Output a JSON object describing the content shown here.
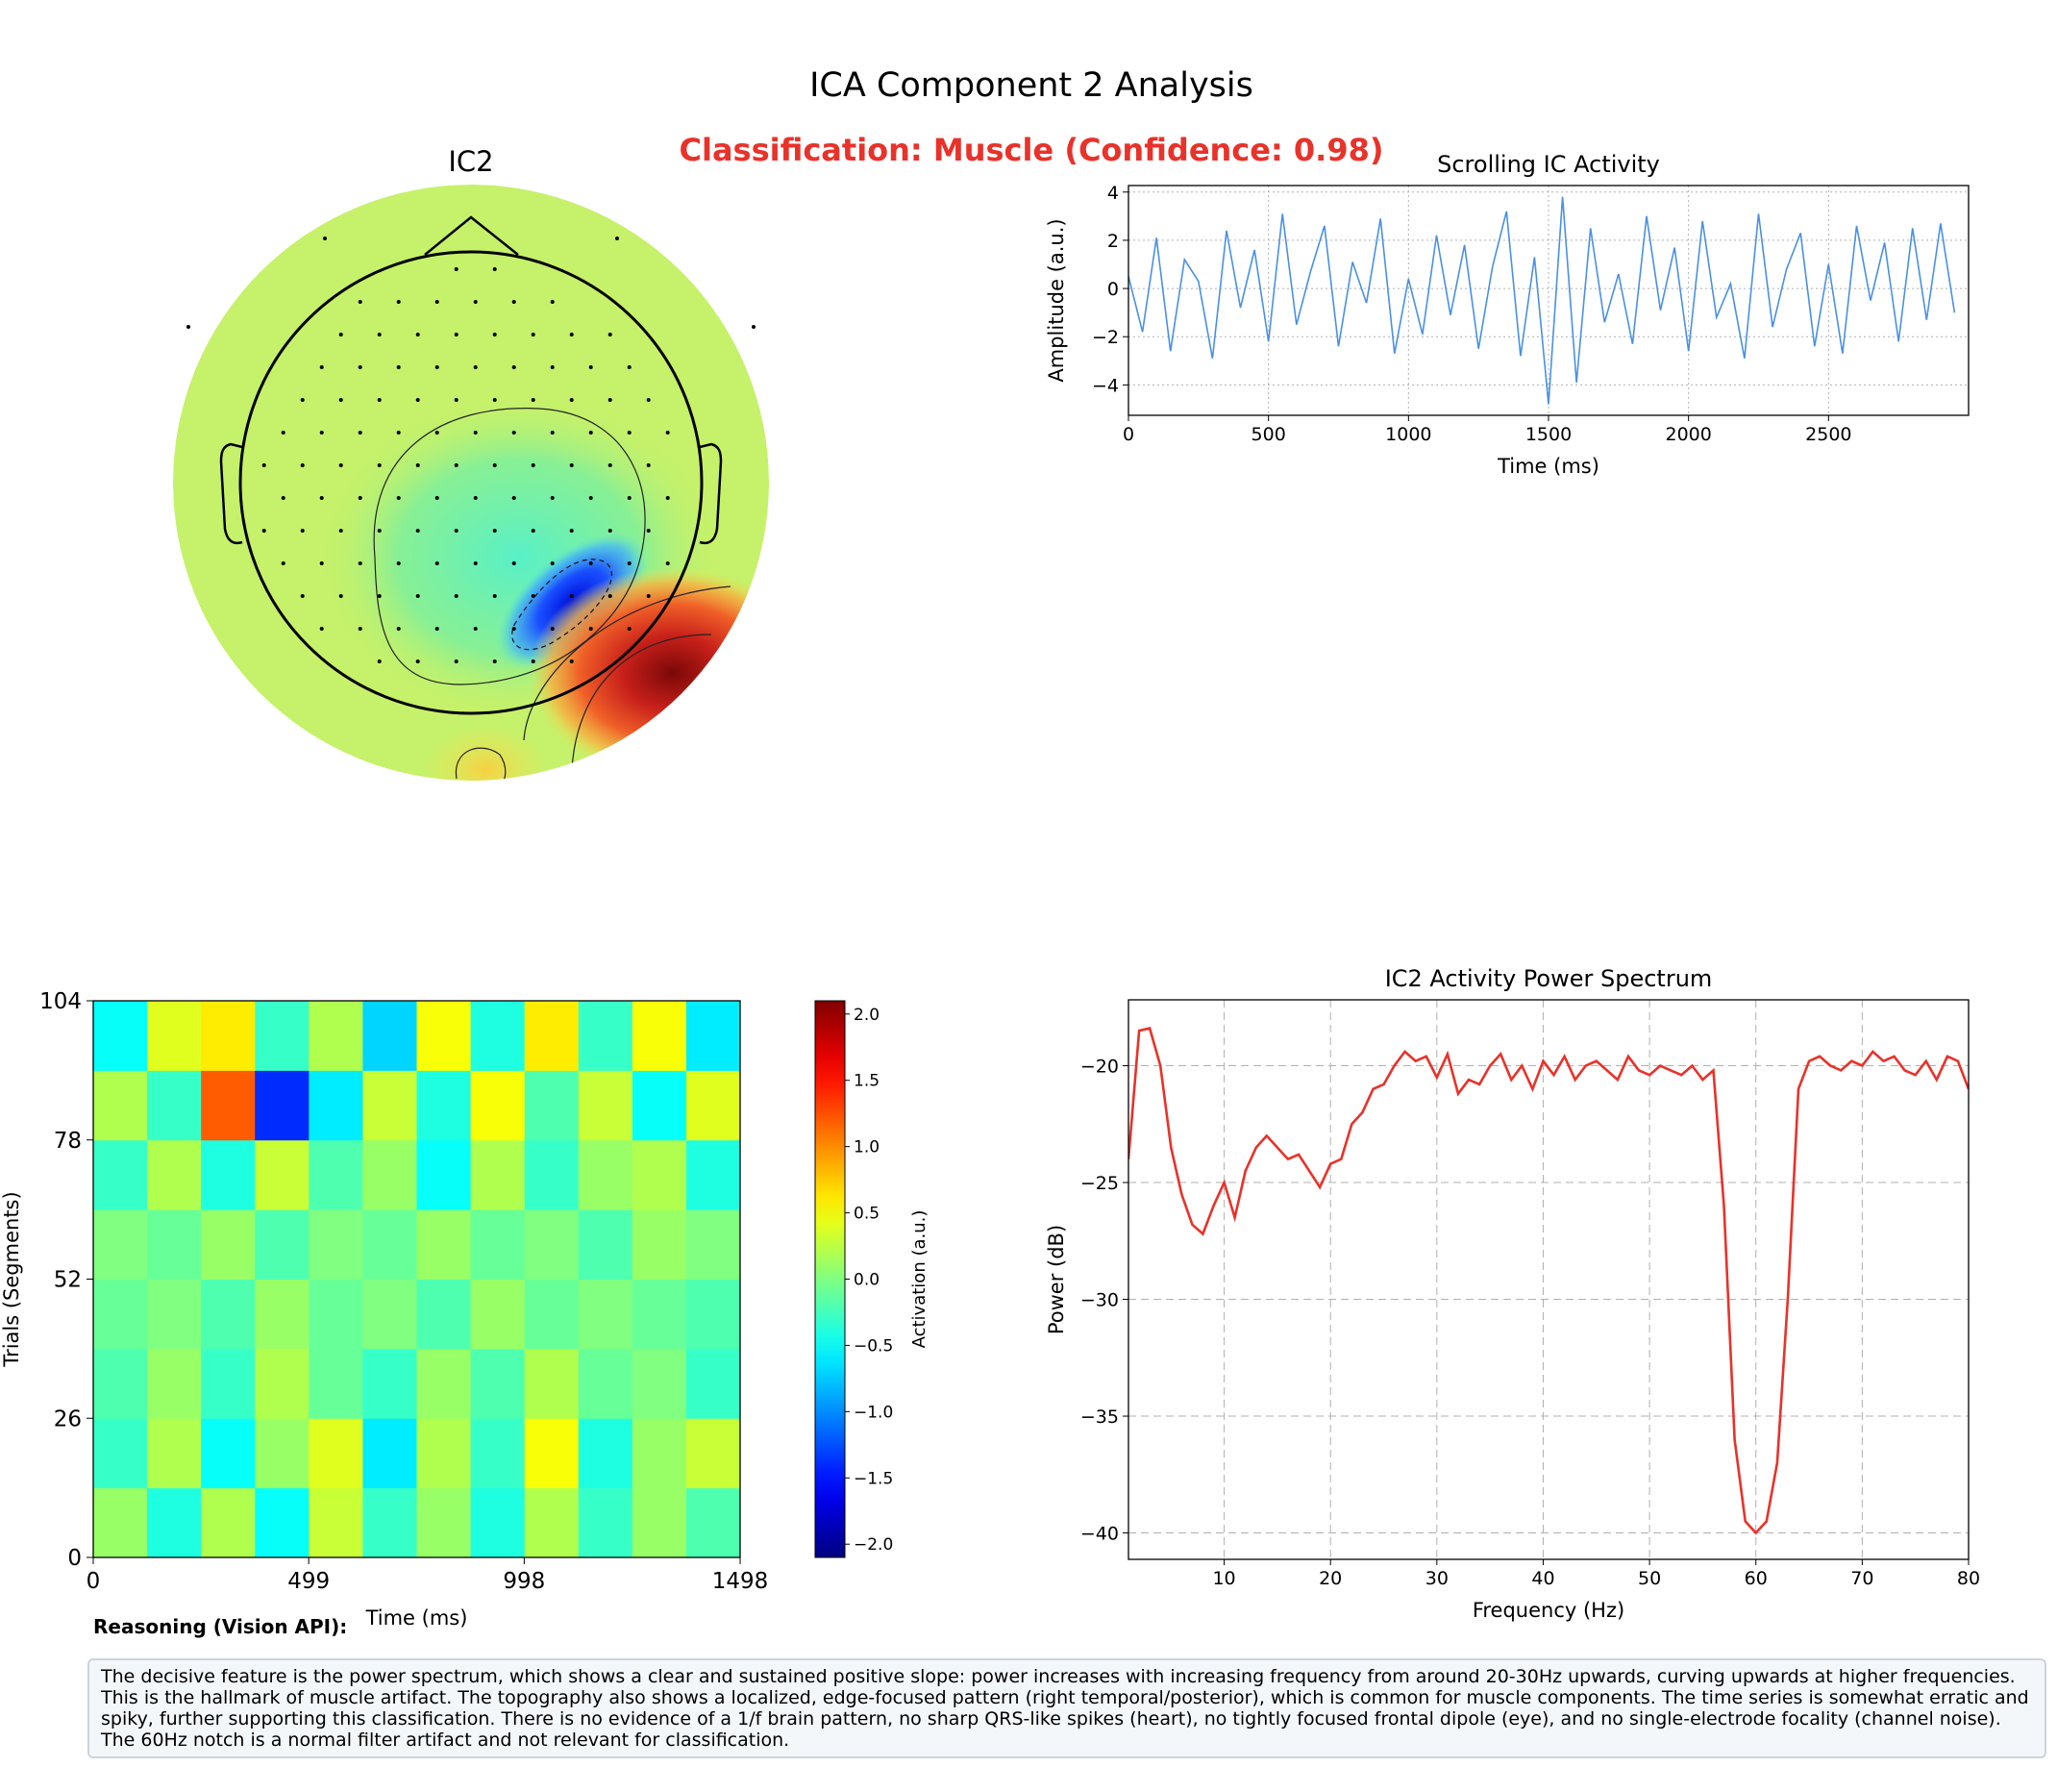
{
  "title": "ICA Component 2 Analysis",
  "classification": "Classification: Muscle (Confidence: 0.98)",
  "topomap": {
    "title": "IC2"
  },
  "chart_data": [
    {
      "type": "line",
      "title": "Scrolling IC Activity",
      "xlabel": "Time (ms)",
      "ylabel": "Amplitude (a.u.)",
      "x": [
        0,
        50,
        100,
        150,
        200,
        250,
        300,
        350,
        400,
        450,
        500,
        550,
        600,
        650,
        700,
        750,
        800,
        850,
        900,
        950,
        1000,
        1050,
        1100,
        1150,
        1200,
        1250,
        1300,
        1350,
        1400,
        1450,
        1500,
        1550,
        1600,
        1650,
        1700,
        1750,
        1800,
        1850,
        1900,
        1950,
        2000,
        2050,
        2100,
        2150,
        2200,
        2250,
        2300,
        2350,
        2400,
        2450,
        2500,
        2550,
        2600,
        2650,
        2700,
        2750,
        2800,
        2850,
        2900,
        2950
      ],
      "series": [
        {
          "color": "#4a90e2",
          "values": [
            0.5,
            -1.8,
            2.1,
            -2.6,
            1.2,
            0.3,
            -2.9,
            2.4,
            -0.8,
            1.6,
            -2.2,
            3.1,
            -1.5,
            0.7,
            2.6,
            -2.4,
            1.1,
            -0.6,
            2.9,
            -2.7,
            0.4,
            -1.9,
            2.2,
            -1.1,
            1.8,
            -2.5,
            0.9,
            3.2,
            -2.8,
            1.3,
            -4.8,
            3.8,
            -3.9,
            2.5,
            -1.4,
            0.6,
            -2.3,
            3.0,
            -0.9,
            1.7,
            -2.6,
            2.8,
            -1.2,
            0.2,
            -2.9,
            3.1,
            -1.6,
            0.8,
            2.3,
            -2.4,
            1.0,
            -2.7,
            2.6,
            -0.5,
            1.9,
            -2.2,
            2.5,
            -1.3,
            2.7,
            -1.0
          ]
        }
      ],
      "xlim": [
        0,
        3000
      ],
      "xticks": [
        0,
        500,
        1000,
        1500,
        2000,
        2500
      ],
      "ylim": [
        -5.26,
        4.27
      ],
      "yticks": [
        {
          "value": -4,
          "label": "−4"
        },
        {
          "value": -2,
          "label": "−2"
        },
        0,
        2,
        4
      ],
      "grid": true,
      "grid_style": "dotted"
    },
    {
      "type": "heatmap",
      "xlabel": "Time (ms)",
      "ylabel": "Trials (Segments)",
      "colorbar_label": "Activation (a.u.)",
      "colormap": "jet",
      "values": [
        [
          0.1,
          -0.4,
          0.2,
          -0.5,
          0.3,
          -0.3,
          0.1,
          -0.4,
          0.2,
          -0.3,
          0.1,
          -0.2
        ],
        [
          -0.3,
          0.2,
          -0.5,
          0.1,
          0.4,
          -0.6,
          0.2,
          -0.3,
          0.5,
          -0.4,
          0.1,
          0.3
        ],
        [
          -0.2,
          0.1,
          -0.3,
          0.2,
          -0.1,
          -0.3,
          0.1,
          -0.2,
          0.2,
          -0.1,
          0.0,
          -0.3
        ],
        [
          -0.1,
          0.0,
          -0.2,
          0.1,
          -0.1,
          0.0,
          -0.2,
          0.1,
          -0.1,
          0.0,
          -0.1,
          -0.2
        ],
        [
          0.0,
          -0.1,
          0.1,
          -0.2,
          0.0,
          -0.1,
          0.1,
          -0.1,
          0.0,
          -0.2,
          0.1,
          0.0
        ],
        [
          -0.3,
          0.2,
          -0.4,
          0.3,
          -0.2,
          0.1,
          -0.5,
          0.2,
          -0.3,
          0.1,
          0.2,
          -0.4
        ],
        [
          0.2,
          -0.3,
          1.2,
          -1.4,
          -0.6,
          0.3,
          -0.4,
          0.5,
          -0.2,
          0.3,
          -0.5,
          0.4
        ],
        [
          -0.5,
          0.4,
          0.6,
          -0.3,
          0.2,
          -0.7,
          0.5,
          -0.4,
          0.6,
          -0.3,
          0.5,
          -0.6
        ]
      ],
      "xlim": [
        0,
        1498
      ],
      "xticks": [
        0,
        499,
        998,
        1498
      ],
      "ylim": [
        0,
        104
      ],
      "yticks": [
        0,
        26,
        52,
        78,
        104
      ],
      "clim": [
        -2.1,
        2.1
      ],
      "cticks": [
        {
          "value": -2.0,
          "label": "−2.0"
        },
        {
          "value": -1.5,
          "label": "−1.5"
        },
        {
          "value": -1.0,
          "label": "−1.0"
        },
        {
          "value": -0.5,
          "label": "−0.5"
        },
        {
          "value": 0.0,
          "label": "0.0"
        },
        {
          "value": 0.5,
          "label": "0.5"
        },
        {
          "value": 1.0,
          "label": "1.0"
        },
        {
          "value": 1.5,
          "label": "1.5"
        },
        {
          "value": 2.0,
          "label": "2.0"
        }
      ]
    },
    {
      "type": "line",
      "title": "IC2 Activity Power Spectrum",
      "xlabel": "Frequency (Hz)",
      "ylabel": "Power (dB)",
      "x": [
        1,
        2,
        3,
        4,
        5,
        6,
        7,
        8,
        9,
        10,
        11,
        12,
        13,
        14,
        15,
        16,
        17,
        18,
        19,
        20,
        21,
        22,
        23,
        24,
        25,
        26,
        27,
        28,
        29,
        30,
        31,
        32,
        33,
        34,
        35,
        36,
        37,
        38,
        39,
        40,
        41,
        42,
        43,
        44,
        45,
        46,
        47,
        48,
        49,
        50,
        51,
        52,
        53,
        54,
        55,
        56,
        57,
        58,
        59,
        60,
        61,
        62,
        63,
        64,
        65,
        66,
        67,
        68,
        69,
        70,
        71,
        72,
        73,
        74,
        75,
        76,
        77,
        78,
        79,
        80
      ],
      "series": [
        {
          "color": "#e8322a",
          "values": [
            -24,
            -18.5,
            -18.4,
            -20,
            -23.5,
            -25.5,
            -26.8,
            -27.2,
            -26,
            -25,
            -26.5,
            -24.5,
            -23.5,
            -23,
            -23.5,
            -24,
            -23.8,
            -24.5,
            -25.2,
            -24.2,
            -24,
            -22.5,
            -22,
            -21,
            -20.8,
            -20,
            -19.4,
            -19.8,
            -19.6,
            -20.5,
            -19.5,
            -21.2,
            -20.6,
            -20.8,
            -20,
            -19.5,
            -20.6,
            -20,
            -21,
            -19.8,
            -20.4,
            -19.6,
            -20.6,
            -20,
            -19.8,
            -20.2,
            -20.6,
            -19.6,
            -20.2,
            -20.4,
            -20,
            -20.2,
            -20.4,
            -20,
            -20.6,
            -20.2,
            -26,
            -36,
            -39.5,
            -40,
            -39.5,
            -37,
            -30,
            -21,
            -19.8,
            -19.6,
            -20,
            -20.2,
            -19.8,
            -20,
            -19.4,
            -19.8,
            -19.6,
            -20.2,
            -20.4,
            -19.8,
            -20.6,
            -19.6,
            -19.8,
            -21
          ]
        }
      ],
      "xlim": [
        1,
        80
      ],
      "xticks": [
        10,
        20,
        30,
        40,
        50,
        60,
        70,
        80
      ],
      "ylim": [
        -41.13,
        -17.18
      ],
      "yticks": [
        {
          "value": -40,
          "label": "−40"
        },
        {
          "value": -35,
          "label": "−35"
        },
        {
          "value": -30,
          "label": "−30"
        },
        {
          "value": -25,
          "label": "−25"
        },
        {
          "value": -20,
          "label": "−20"
        }
      ],
      "grid": true,
      "grid_style": "dashed"
    }
  ],
  "reasoning": {
    "label": "Reasoning (Vision API):",
    "text": "The decisive feature is the power spectrum, which shows a clear and sustained positive slope: power increases with increasing frequency from around 20-30Hz upwards, curving upwards at higher frequencies. This is the hallmark of muscle artifact. The topography also shows a localized, edge-focused pattern (right temporal/posterior), which is common for muscle components. The time series is somewhat erratic and spiky, further supporting this classification. There is no evidence of a 1/f brain pattern, no sharp QRS-like spikes (heart), no tightly focused frontal dipole (eye), and no single-electrode focality (channel noise). The 60Hz notch is a normal filter artifact and not relevant for classification."
  }
}
